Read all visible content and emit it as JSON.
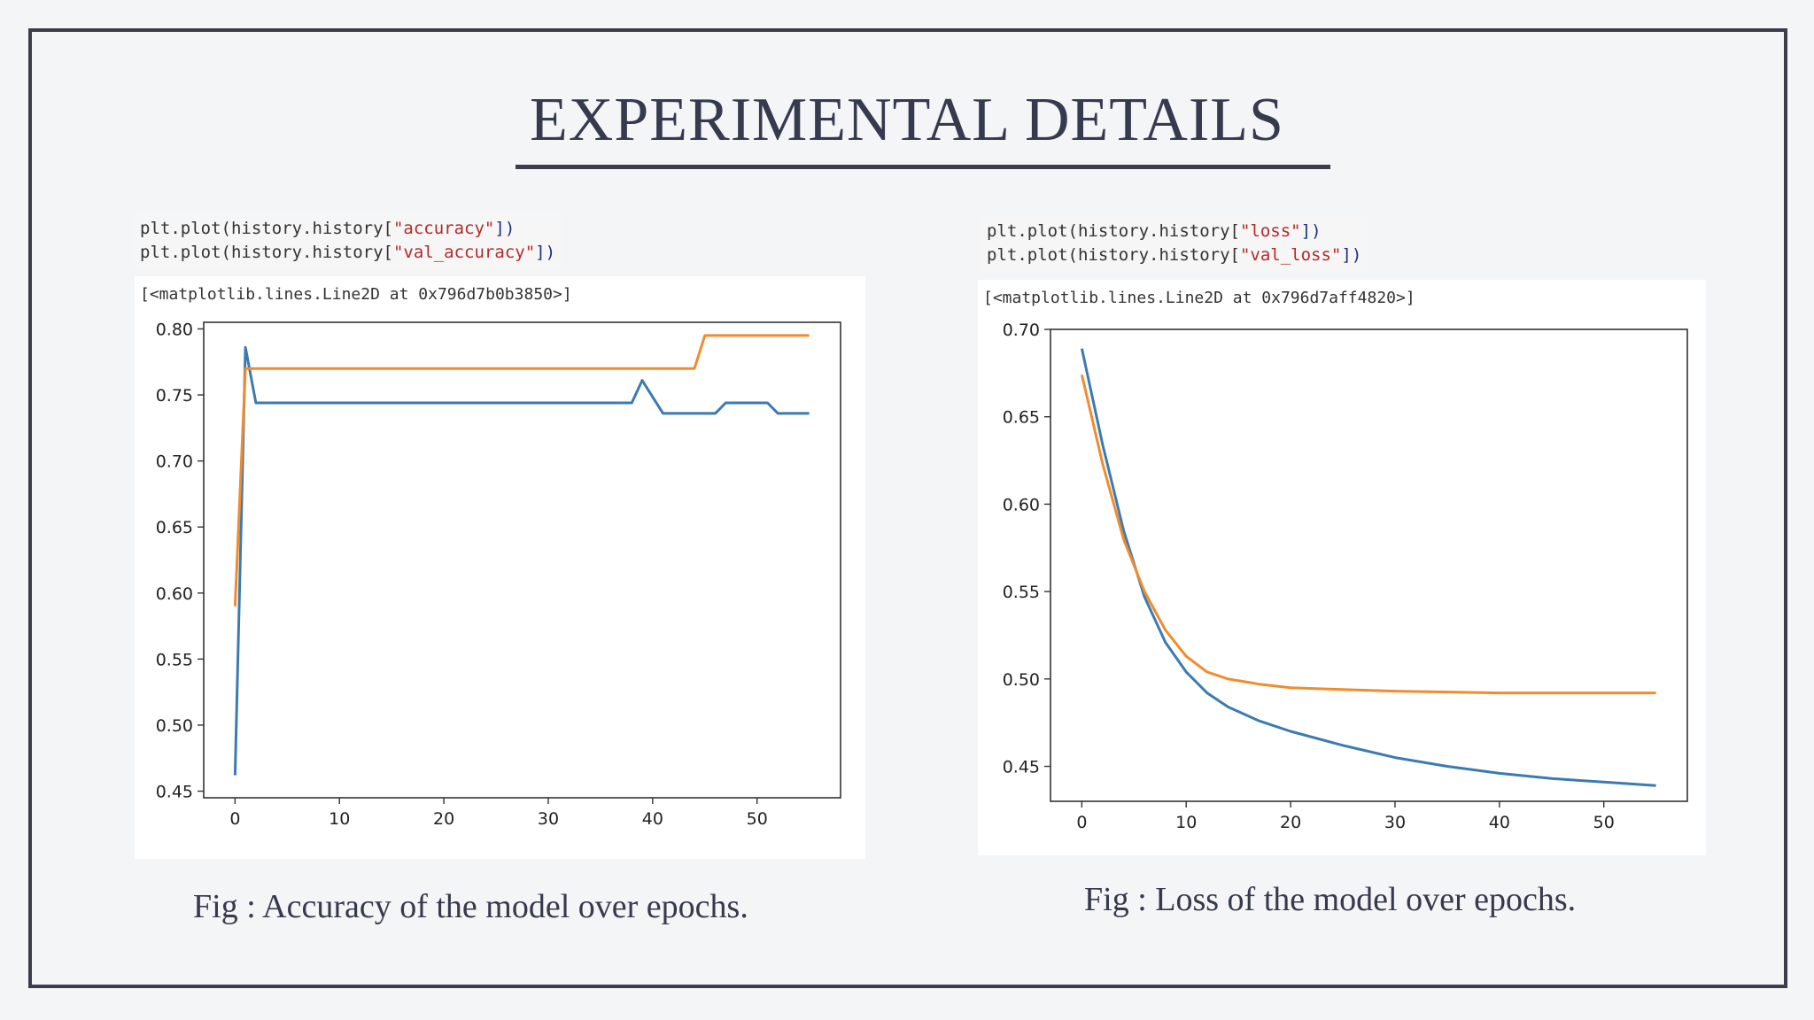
{
  "slide": {
    "title": "EXPERIMENTAL DETAILS"
  },
  "left": {
    "code": {
      "line1_pre": "plt.plot(history.history[",
      "line1_str": "\"accuracy\"",
      "line1_post": "])",
      "line2_pre": "plt.plot(history.history[",
      "line2_str": "\"val_accuracy\"",
      "line2_post": "])"
    },
    "output": "[<matplotlib.lines.Line2D at 0x796d7b0b3850>]",
    "caption": "Fig : Accuracy of the model over epochs."
  },
  "right": {
    "code": {
      "line1_pre": "plt.plot(history.history[",
      "line1_str": "\"loss\"",
      "line1_post": "])",
      "line2_pre": "plt.plot(history.history[",
      "line2_str": "\"val_loss\"",
      "line2_post": "])"
    },
    "output": "[<matplotlib.lines.Line2D at 0x796d7aff4820>]",
    "caption": "Fig : Loss of the model over epochs."
  },
  "colors": {
    "series1": "#3b7bb0",
    "series2": "#f08c2e",
    "axis": "#333333"
  },
  "chart_data": [
    {
      "type": "line",
      "title": "",
      "xlabel": "",
      "ylabel": "",
      "xlim": [
        -3,
        58
      ],
      "ylim": [
        0.445,
        0.805
      ],
      "xticks": [
        0,
        10,
        20,
        30,
        40,
        50
      ],
      "yticks": [
        0.45,
        0.5,
        0.55,
        0.6,
        0.65,
        0.7,
        0.75,
        0.8
      ],
      "grid": false,
      "series": [
        {
          "color": "#3b7bb0",
          "x": [
            0,
            1,
            2,
            38,
            39,
            41,
            42,
            46,
            47,
            51,
            52,
            55
          ],
          "y": [
            0.462,
            0.786,
            0.744,
            0.744,
            0.761,
            0.736,
            0.736,
            0.736,
            0.744,
            0.744,
            0.736,
            0.736
          ]
        },
        {
          "color": "#f08c2e",
          "x": [
            0,
            1,
            44,
            45,
            55
          ],
          "y": [
            0.59,
            0.77,
            0.77,
            0.795,
            0.795
          ]
        }
      ]
    },
    {
      "type": "line",
      "title": "",
      "xlabel": "",
      "ylabel": "",
      "xlim": [
        -3,
        58
      ],
      "ylim": [
        0.43,
        0.7
      ],
      "xticks": [
        0,
        10,
        20,
        30,
        40,
        50
      ],
      "yticks": [
        0.45,
        0.5,
        0.55,
        0.6,
        0.65,
        0.7
      ],
      "grid": false,
      "series": [
        {
          "color": "#3b7bb0",
          "x": [
            0,
            2,
            4,
            6,
            8,
            10,
            12,
            14,
            17,
            20,
            25,
            30,
            35,
            40,
            45,
            50,
            55
          ],
          "y": [
            0.689,
            0.634,
            0.585,
            0.547,
            0.521,
            0.504,
            0.492,
            0.484,
            0.476,
            0.47,
            0.462,
            0.455,
            0.45,
            0.446,
            0.443,
            0.441,
            0.439
          ]
        },
        {
          "color": "#f08c2e",
          "x": [
            0,
            2,
            4,
            6,
            8,
            10,
            12,
            14,
            17,
            20,
            25,
            30,
            40,
            50,
            55
          ],
          "y": [
            0.674,
            0.623,
            0.58,
            0.55,
            0.528,
            0.513,
            0.504,
            0.5,
            0.497,
            0.495,
            0.494,
            0.493,
            0.492,
            0.492,
            0.492
          ]
        }
      ]
    }
  ]
}
